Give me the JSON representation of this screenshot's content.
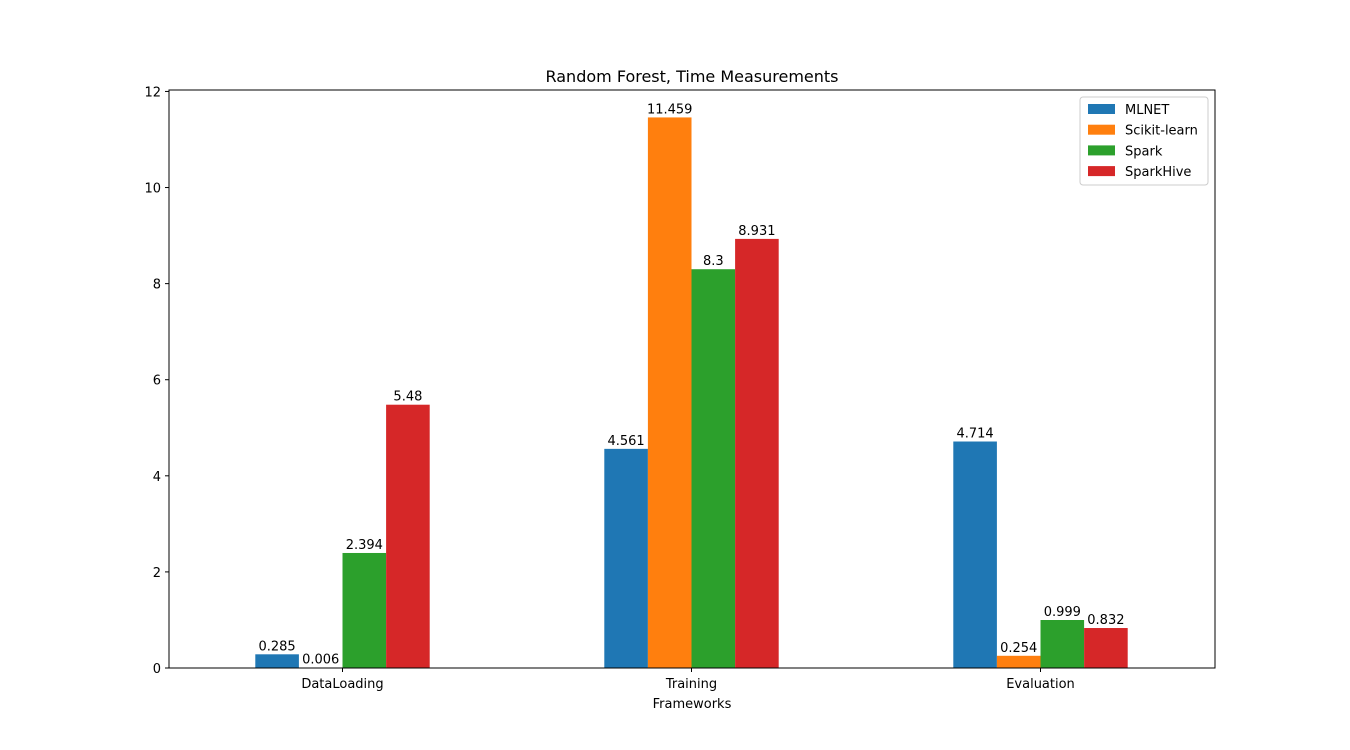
{
  "chart_data": {
    "type": "bar",
    "title": "Random Forest, Time Measurements",
    "xlabel": "Frameworks",
    "ylabel": "",
    "categories": [
      "DataLoading",
      "Training",
      "Evaluation"
    ],
    "ylim": [
      0,
      12.03
    ],
    "yticks": [
      0,
      2,
      4,
      6,
      8,
      10,
      12
    ],
    "grid": false,
    "legend_position": "top-right",
    "series": [
      {
        "name": "MLNET",
        "color": "#1f77b4",
        "values": [
          0.285,
          4.561,
          4.714
        ],
        "labels": [
          "0.285",
          "4.561",
          "4.714"
        ]
      },
      {
        "name": "Scikit-learn",
        "color": "#ff7f0e",
        "values": [
          0.006,
          11.459,
          0.254
        ],
        "labels": [
          "0.006",
          "11.459",
          "0.254"
        ]
      },
      {
        "name": "Spark",
        "color": "#2ca02c",
        "values": [
          2.394,
          8.3,
          0.999
        ],
        "labels": [
          "2.394",
          "8.3",
          "0.999"
        ]
      },
      {
        "name": "SparkHive",
        "color": "#d62728",
        "values": [
          5.48,
          8.931,
          0.832
        ],
        "labels": [
          "5.48",
          "8.931",
          "0.832"
        ]
      }
    ]
  }
}
